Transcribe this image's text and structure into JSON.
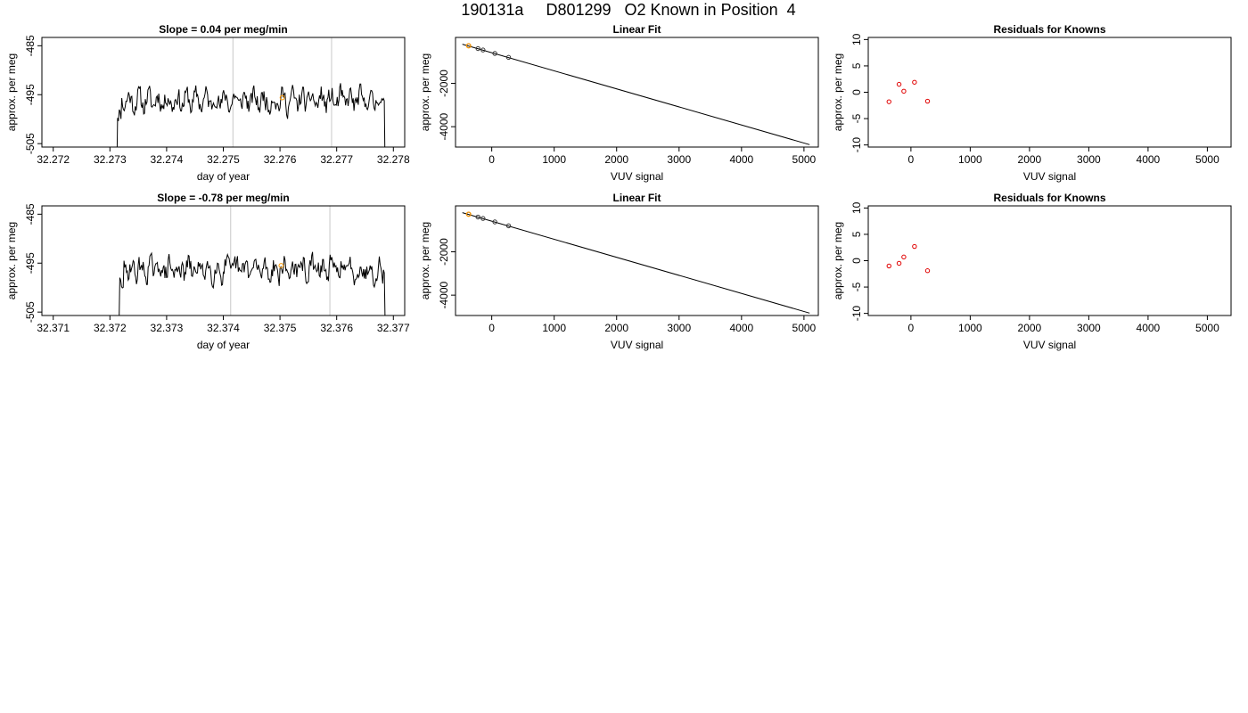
{
  "page_title": "190131a     D801299   O2 Known in Position  4",
  "colors": {
    "trace": "#000000",
    "vline": "#c8c8c8",
    "highlight": "#ff9900",
    "residual": "#e00000",
    "point": "#333333"
  },
  "chart_data": [
    {
      "type": "line",
      "panel": "trace-1",
      "title": "Slope =  0.04  per meg/min",
      "xlabel": "day of year",
      "ylabel": "approx. per meg",
      "xlim": [
        32.2718,
        32.2782
      ],
      "ylim": [
        -505.7,
        -483.3
      ],
      "xticks": [
        "32.272",
        "32.273",
        "32.274",
        "32.275",
        "32.276",
        "32.277",
        "32.278"
      ],
      "yticks": [
        "-505",
        "-495",
        "-485"
      ],
      "vlines": [
        32.27517,
        32.27691
      ],
      "marker": {
        "x": 32.27604,
        "y": -495.6
      },
      "x_start": 32.27312,
      "x_end": 32.27787,
      "y_mean": -496.2,
      "y_noise": 1.8,
      "y_end": -512,
      "seed": 11
    },
    {
      "type": "line",
      "panel": "trace-2",
      "title": "Slope =  -0.78  per meg/min",
      "xlabel": "day of year",
      "ylabel": "approx. per meg",
      "xlim": [
        32.3708,
        32.3772
      ],
      "ylim": [
        -505.7,
        -483.3
      ],
      "xticks": [
        "32.371",
        "32.372",
        "32.373",
        "32.374",
        "32.375",
        "32.376",
        "32.377"
      ],
      "yticks": [
        "-505",
        "-495",
        "-485"
      ],
      "vlines": [
        32.37413,
        32.37588
      ],
      "marker": {
        "x": 32.37502,
        "y": -495.5
      },
      "x_start": 32.37216,
      "x_end": 32.37687,
      "y_mean": -496.3,
      "y_noise": 1.9,
      "y_end": -508,
      "seed": 29
    },
    {
      "type": "scatter",
      "panel": "fit-1",
      "title": "Linear Fit",
      "xlabel": "VUV signal",
      "ylabel": "approx. per meg",
      "xlim": [
        -580,
        5230
      ],
      "ylim": [
        -4940,
        120
      ],
      "xticks": [
        0,
        1000,
        2000,
        3000,
        4000,
        5000
      ],
      "yticks": [
        -2000,
        -4000
      ],
      "line": {
        "x": [
          -470,
          5090
        ],
        "y": [
          -195,
          -4830
        ]
      },
      "points": {
        "x": [
          -370,
          -220,
          -140,
          50,
          270
        ],
        "y": [
          -265,
          -395,
          -460,
          -620,
          -800
        ]
      },
      "highlight": {
        "x": -370,
        "y": -265
      }
    },
    {
      "type": "scatter",
      "panel": "residuals-1",
      "title": "Residuals for Knowns",
      "xlabel": "VUV signal",
      "ylabel": "approx. per meg",
      "xlim": [
        -720,
        5400
      ],
      "ylim": [
        -10.4,
        10.4
      ],
      "xticks": [
        0,
        1000,
        2000,
        3000,
        4000,
        5000
      ],
      "yticks": [
        10,
        5,
        0,
        -5,
        -10
      ],
      "points": {
        "x": [
          -370,
          -200,
          -120,
          60,
          280
        ],
        "y": [
          -1.8,
          1.5,
          0.2,
          1.9,
          -1.7
        ]
      }
    },
    {
      "type": "scatter",
      "panel": "fit-2",
      "title": "Linear Fit",
      "xlabel": "VUV signal",
      "ylabel": "approx. per meg",
      "xlim": [
        -580,
        5230
      ],
      "ylim": [
        -4940,
        120
      ],
      "xticks": [
        0,
        1000,
        2000,
        3000,
        4000,
        5000
      ],
      "yticks": [
        -2000,
        -4000
      ],
      "line": {
        "x": [
          -470,
          5090
        ],
        "y": [
          -195,
          -4830
        ]
      },
      "points": {
        "x": [
          -370,
          -220,
          -140,
          50,
          270
        ],
        "y": [
          -265,
          -395,
          -460,
          -620,
          -800
        ]
      },
      "highlight": {
        "x": -370,
        "y": -265
      }
    },
    {
      "type": "scatter",
      "panel": "residuals-2",
      "title": "Residuals for Knowns",
      "xlabel": "VUV signal",
      "ylabel": "approx. per meg",
      "xlim": [
        -720,
        5400
      ],
      "ylim": [
        -10.4,
        10.4
      ],
      "xticks": [
        0,
        1000,
        2000,
        3000,
        4000,
        5000
      ],
      "yticks": [
        10,
        5,
        0,
        -5,
        -10
      ],
      "points": {
        "x": [
          -370,
          -200,
          -120,
          60,
          280
        ],
        "y": [
          -1.0,
          -0.5,
          0.7,
          2.7,
          -1.9
        ]
      }
    }
  ]
}
